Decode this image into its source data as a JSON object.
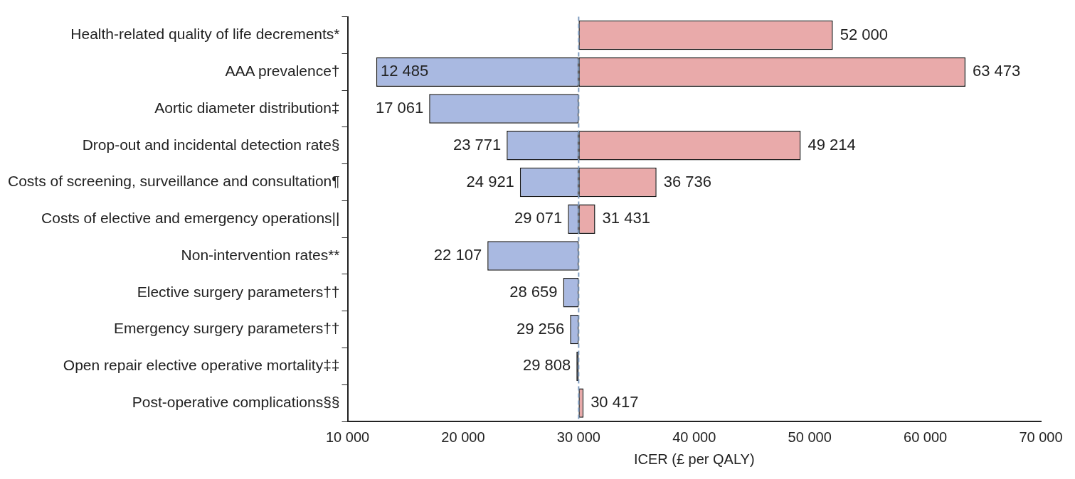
{
  "chart_data": {
    "type": "bar",
    "orientation": "horizontal",
    "xlabel": "ICER (£ per QALY)",
    "categories": [
      "Health-related quality of life decrements*",
      "AAA prevalence†",
      "Aortic diameter distribution‡",
      "Drop-out and incidental detection rate§",
      "Costs of screening, surveillance and consultation¶",
      "Costs of elective and emergency operations||",
      "Non-intervention rates**",
      "Elective surgery parameters††",
      "Emergency surgery parameters††",
      "Open repair elective operative mortality‡‡",
      "Post-operative complications§§"
    ],
    "series": [
      {
        "color": "#a9b9e1",
        "base": [
          null,
          30000,
          30000,
          30000,
          30000,
          30000,
          30000,
          30000,
          30000,
          30000,
          null
        ],
        "values": [
          null,
          -17515,
          -12939,
          -6229,
          -5079,
          -929,
          -7893,
          -1341,
          -744,
          -192,
          null
        ],
        "value_labels": [
          null,
          "12 485",
          "17 061",
          "23 771",
          "24 921",
          "29 071",
          "22 107",
          "28 659",
          "29 256",
          "29 808",
          null
        ]
      },
      {
        "color": "#e9aaaa",
        "base": [
          30000,
          30000,
          null,
          30000,
          30000,
          30000,
          null,
          null,
          null,
          null,
          30000
        ],
        "values": [
          22000,
          33473,
          null,
          19214,
          6736,
          1431,
          null,
          null,
          null,
          null,
          417
        ],
        "value_labels": [
          "52 000",
          "63 473",
          null,
          "49 214",
          "36 736",
          "31 431",
          null,
          null,
          null,
          null,
          "30 417"
        ]
      }
    ],
    "xlim": [
      10000,
      70000
    ],
    "xticks": [
      {
        "value": 10000,
        "label": "10 000"
      },
      {
        "value": 20000,
        "label": "20 000"
      },
      {
        "value": 30000,
        "label": "30 000"
      },
      {
        "value": 40000,
        "label": "40 000"
      },
      {
        "value": 50000,
        "label": "50 000"
      },
      {
        "value": 60000,
        "label": "60 000"
      },
      {
        "value": 70000,
        "label": "70 000"
      }
    ],
    "ref_lines": [
      {
        "axis": "x",
        "value": 30000,
        "color": "#7f9cbf",
        "line_style": "dashed"
      }
    ],
    "grid": false,
    "legend": false
  }
}
